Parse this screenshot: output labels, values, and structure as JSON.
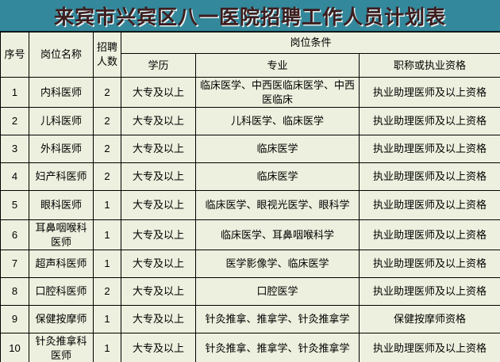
{
  "title": "来宾市兴宾区八一医院招聘工作人员计划表",
  "colors": {
    "title_bg": "#33889b",
    "title_text": "#3d1d1f",
    "table_bg": "#edf0de",
    "border": "#000000"
  },
  "table": {
    "headers": {
      "index": "序号",
      "position": "岗位名称",
      "count": "招聘人数",
      "conditions": "岗位条件",
      "education": "学历",
      "major": "专业",
      "qualification": "职称或执业资格"
    },
    "rows": [
      {
        "index": "1",
        "position": "内科医师",
        "count": "2",
        "education": "大专及以上",
        "major": "临床医学、中西医临床医学、中西医临床",
        "qualification": "执业助理医师及以上资格"
      },
      {
        "index": "2",
        "position": "儿科医师",
        "count": "2",
        "education": "大专及以上",
        "major": "儿科医学、临床医学",
        "qualification": "执业助理医师及以上资格"
      },
      {
        "index": "3",
        "position": "外科医师",
        "count": "2",
        "education": "大专及以上",
        "major": "临床医学",
        "qualification": "执业助理医师及以上资格"
      },
      {
        "index": "4",
        "position": "妇产科医师",
        "count": "2",
        "education": "大专及以上",
        "major": "临床医学",
        "qualification": "执业助理医师及以上资格"
      },
      {
        "index": "5",
        "position": "眼科医师",
        "count": "1",
        "education": "大专及以上",
        "major": "临床医学、眼视光医学、眼科学",
        "qualification": "执业助理医师及以上资格"
      },
      {
        "index": "6",
        "position": "耳鼻咽喉科医师",
        "count": "1",
        "education": "大专及以上",
        "major": "临床医学、耳鼻咽喉科学",
        "qualification": "执业助理医师及以上资格"
      },
      {
        "index": "7",
        "position": "超声科医师",
        "count": "1",
        "education": "大专及以上",
        "major": "医学影像学、临床医学",
        "qualification": "执业助理医师及以上资格"
      },
      {
        "index": "8",
        "position": "口腔科医师",
        "count": "2",
        "education": "大专及以上",
        "major": "口腔医学",
        "qualification": "执业助理医师及以上资格"
      },
      {
        "index": "9",
        "position": "保健按摩师",
        "count": "1",
        "education": "大专及以上",
        "major": "针灸推拿、推拿学、针灸推拿学",
        "qualification": "保健按摩师资格"
      },
      {
        "index": "10",
        "position": "针灸推拿科医师",
        "count": "1",
        "education": "大专及以上",
        "major": "针灸推拿、推拿学、针灸推拿学",
        "qualification": "执业助理医师及以上资格"
      }
    ]
  }
}
